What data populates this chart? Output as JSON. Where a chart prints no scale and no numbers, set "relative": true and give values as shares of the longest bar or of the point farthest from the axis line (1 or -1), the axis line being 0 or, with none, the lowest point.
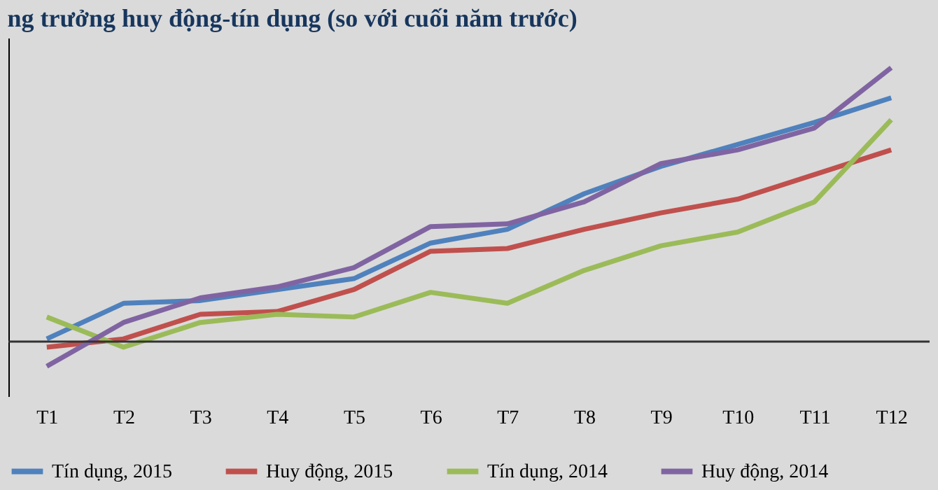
{
  "chart_data": {
    "type": "line",
    "title": "ng trưởng huy động-tín dụng (so với cuối năm trước)",
    "relative": true,
    "categories": [
      "T1",
      "T2",
      "T3",
      "T4",
      "T5",
      "T6",
      "T7",
      "T8",
      "T9",
      "T10",
      "T11",
      "T12"
    ],
    "series": [
      {
        "name": "Tín dụng, 2015",
        "color": "#4f81bd",
        "values": [
          0.01,
          0.14,
          0.15,
          0.19,
          0.23,
          0.36,
          0.41,
          0.54,
          0.64,
          0.72,
          0.8,
          0.89
        ]
      },
      {
        "name": "Huy động, 2015",
        "color": "#c0504d",
        "values": [
          -0.02,
          0.01,
          0.1,
          0.11,
          0.19,
          0.33,
          0.34,
          0.41,
          0.47,
          0.52,
          0.61,
          0.7
        ]
      },
      {
        "name": "Tín dụng, 2014",
        "color": "#9bbb59",
        "values": [
          0.09,
          -0.02,
          0.07,
          0.1,
          0.09,
          0.18,
          0.14,
          0.26,
          0.35,
          0.4,
          0.51,
          0.81
        ]
      },
      {
        "name": "Huy động, 2014",
        "color": "#8064a2",
        "values": [
          -0.09,
          0.07,
          0.16,
          0.2,
          0.27,
          0.42,
          0.43,
          0.51,
          0.65,
          0.7,
          0.78,
          1.0
        ]
      }
    ],
    "legend": "bottom",
    "marker": "none",
    "line_style": "solid"
  }
}
